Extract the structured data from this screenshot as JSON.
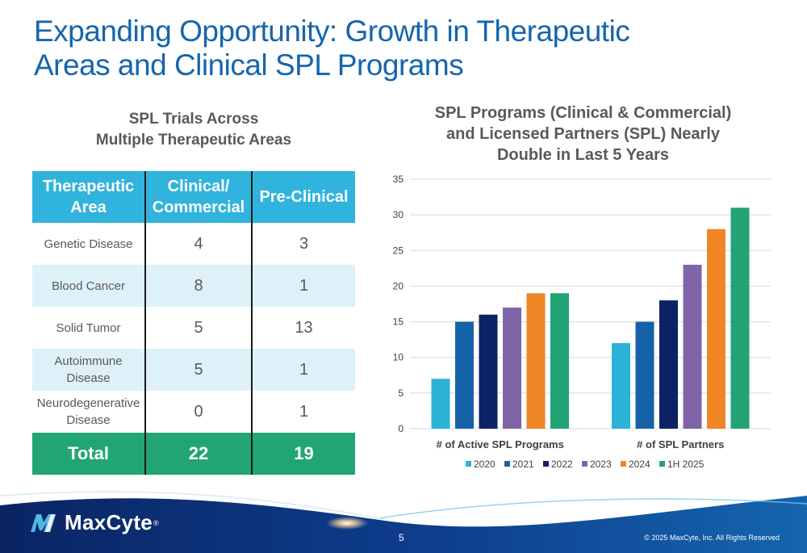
{
  "slide": {
    "title_lines": [
      "Expanding Opportunity: Growth in Therapeutic",
      "Areas and Clinical SPL Programs"
    ]
  },
  "table_section": {
    "subtitle_lines": [
      "SPL Trials Across",
      "Multiple Therapeutic Areas"
    ],
    "headers": [
      "Therapeutic Area",
      "Clinical/ Commercial",
      "Pre-Clinical"
    ],
    "header_lines": [
      [
        "Therapeutic",
        "Area"
      ],
      [
        "Clinical/",
        "Commercial"
      ],
      [
        "Pre-Clinical"
      ]
    ],
    "rows": [
      {
        "area_lines": [
          "Genetic Disease"
        ],
        "clinical": "4",
        "preclinical": "3"
      },
      {
        "area_lines": [
          "Blood Cancer"
        ],
        "clinical": "8",
        "preclinical": "1"
      },
      {
        "area_lines": [
          "Solid Tumor"
        ],
        "clinical": "5",
        "preclinical": "13"
      },
      {
        "area_lines": [
          "Autoimmune",
          "Disease"
        ],
        "clinical": "5",
        "preclinical": "1"
      },
      {
        "area_lines": [
          "Neurodegenerative",
          "Disease"
        ],
        "clinical": "0",
        "preclinical": "1"
      }
    ],
    "total": {
      "label": "Total",
      "clinical": "22",
      "preclinical": "19"
    },
    "colors": {
      "header": "#30b3dd",
      "shade": "#dff1f8",
      "total": "#22a574"
    }
  },
  "chart_data": {
    "type": "bar",
    "title_lines": [
      "SPL Programs (Clinical & Commercial)",
      "and Licensed Partners (SPL) Nearly",
      "Double in Last 5 Years"
    ],
    "categories": [
      "# of Active SPL Programs",
      "# of SPL Partners"
    ],
    "series": [
      {
        "name": "2020",
        "color": "#2ab3d6",
        "values": [
          7,
          12
        ]
      },
      {
        "name": "2021",
        "color": "#1662a8",
        "values": [
          15,
          15
        ]
      },
      {
        "name": "2022",
        "color": "#0c2366",
        "values": [
          16,
          18
        ]
      },
      {
        "name": "2023",
        "color": "#8064a8",
        "values": [
          17,
          23
        ]
      },
      {
        "name": "2024",
        "color": "#f08526",
        "values": [
          19,
          28
        ]
      },
      {
        "name": "1H 2025",
        "color": "#21a374",
        "values": [
          19,
          31
        ]
      }
    ],
    "ylim": [
      0,
      35
    ],
    "yticks": [
      0,
      5,
      10,
      15,
      20,
      25,
      30,
      35
    ],
    "grid": true,
    "legend": "bottom"
  },
  "footer": {
    "logo_text": "MaxCyte",
    "logo_mark": "®",
    "page_number": "5",
    "copyright": "© 2025 MaxCyte, Inc. All Rights Reserved"
  }
}
